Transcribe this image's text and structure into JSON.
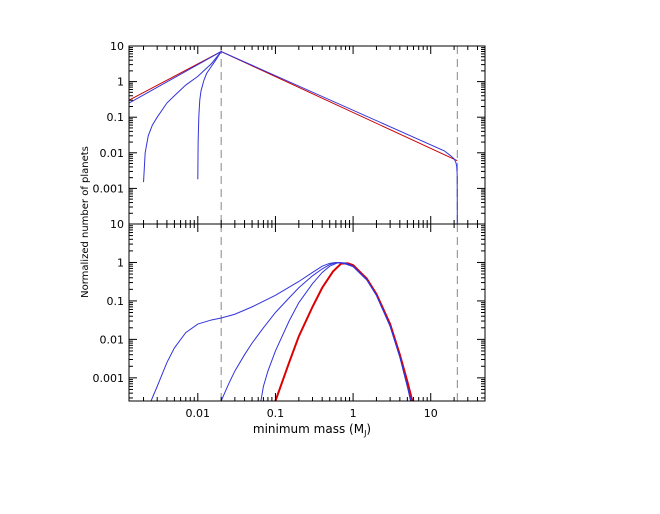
{
  "chart_data": [
    {
      "type": "line",
      "panel": "top",
      "x_scale": "log",
      "y_scale": "log",
      "xlim": [
        0.0013,
        50
      ],
      "ylim": [
        0.0001,
        10
      ],
      "x_ticks": [
        0.01,
        0.1,
        1,
        10
      ],
      "y_tick_labels": [
        "10",
        "1",
        "0.1",
        "0.01",
        "0.001"
      ],
      "y_tick_values": [
        10,
        1,
        0.1,
        0.01,
        0.001
      ],
      "vlines": [
        0.02,
        22
      ],
      "series": [
        {
          "color": "#cc0000",
          "x": [
            0.0013,
            0.02,
            22
          ],
          "y": [
            0.3,
            7,
            0.006
          ]
        },
        {
          "color": "#3333dd",
          "x": [
            0.0013,
            0.02,
            15,
            18,
            20,
            21,
            21.6,
            21.9,
            22
          ],
          "y": [
            0.25,
            7,
            0.0113,
            0.0083,
            0.0068,
            0.0055,
            0.0042,
            0.0025,
            0.0001
          ]
        },
        {
          "color": "#3333dd",
          "x": [
            0.002,
            0.0021,
            0.0023,
            0.0026,
            0.003,
            0.004,
            0.005,
            0.007,
            0.01,
            0.015,
            0.02
          ],
          "y": [
            0.0015,
            0.01,
            0.03,
            0.06,
            0.1,
            0.25,
            0.4,
            0.8,
            1.4,
            3.2,
            7
          ]
        },
        {
          "color": "#3333dd",
          "x": [
            0.01,
            0.0101,
            0.0103,
            0.0106,
            0.011,
            0.012,
            0.013,
            0.015,
            0.017,
            0.02
          ],
          "y": [
            0.0018,
            0.02,
            0.1,
            0.3,
            0.55,
            1.1,
            1.7,
            2.7,
            4,
            7
          ]
        }
      ]
    },
    {
      "type": "line",
      "panel": "bottom",
      "x_scale": "log",
      "y_scale": "log",
      "xlim": [
        0.0013,
        50
      ],
      "ylim": [
        0.00025,
        10
      ],
      "x_ticks": [
        0.01,
        0.1,
        1,
        10
      ],
      "x_tick_labels": [
        "0.01",
        "0.1",
        "1",
        "10"
      ],
      "y_tick_labels": [
        "10",
        "1",
        "0.1",
        "0.01",
        "0.001"
      ],
      "y_tick_values": [
        10,
        1,
        0.1,
        0.01,
        0.001
      ],
      "xlabel": "minimum mass (M",
      "xlabel_sub": "J",
      "xlabel_end": ")",
      "vlines": [
        0.02,
        22
      ],
      "series": [
        {
          "color": "#dd0000",
          "x": [
            0.1,
            0.15,
            0.2,
            0.3,
            0.4,
            0.55,
            0.7,
            0.85,
            1,
            1.5,
            2,
            3,
            4,
            5,
            5.8
          ],
          "y": [
            0.00025,
            0.0025,
            0.012,
            0.07,
            0.22,
            0.58,
            0.93,
            0.95,
            0.85,
            0.38,
            0.15,
            0.025,
            0.004,
            0.0008,
            0.00025
          ]
        },
        {
          "color": "#3333dd",
          "x": [
            0.0025,
            0.003,
            0.004,
            0.005,
            0.007,
            0.01,
            0.015,
            0.02,
            0.03,
            0.05,
            0.1,
            0.2,
            0.3,
            0.4,
            0.5,
            0.6,
            0.75,
            1,
            1.5,
            2,
            3,
            4,
            5,
            5.5
          ],
          "y": [
            0.00025,
            0.0006,
            0.0025,
            0.006,
            0.015,
            0.025,
            0.032,
            0.036,
            0.045,
            0.07,
            0.14,
            0.32,
            0.55,
            0.8,
            0.95,
            1,
            0.95,
            0.78,
            0.35,
            0.14,
            0.022,
            0.0035,
            0.0006,
            0.00025
          ]
        },
        {
          "color": "#3333dd",
          "x": [
            0.02,
            0.025,
            0.03,
            0.04,
            0.05,
            0.07,
            0.1,
            0.15,
            0.2,
            0.3,
            0.4,
            0.5,
            0.6,
            0.75,
            1,
            1.5,
            2,
            3,
            4,
            5,
            5.6
          ],
          "y": [
            0.00025,
            0.0007,
            0.0015,
            0.004,
            0.008,
            0.02,
            0.05,
            0.12,
            0.22,
            0.45,
            0.68,
            0.88,
            0.98,
            0.97,
            0.8,
            0.36,
            0.14,
            0.022,
            0.0035,
            0.0006,
            0.00025
          ]
        },
        {
          "color": "#3333dd",
          "x": [
            0.065,
            0.07,
            0.08,
            0.1,
            0.15,
            0.2,
            0.3,
            0.4,
            0.5,
            0.65,
            0.8,
            1,
            1.5,
            2,
            3,
            4,
            5,
            5.6
          ],
          "y": [
            0.00025,
            0.0006,
            0.0015,
            0.005,
            0.03,
            0.09,
            0.28,
            0.55,
            0.8,
            1,
            0.97,
            0.8,
            0.36,
            0.14,
            0.022,
            0.0035,
            0.0006,
            0.00025
          ]
        }
      ]
    }
  ],
  "shared_ylabel": "Normalized number of planets",
  "colors": {
    "axis": "#000000",
    "dashed": "#888888"
  }
}
